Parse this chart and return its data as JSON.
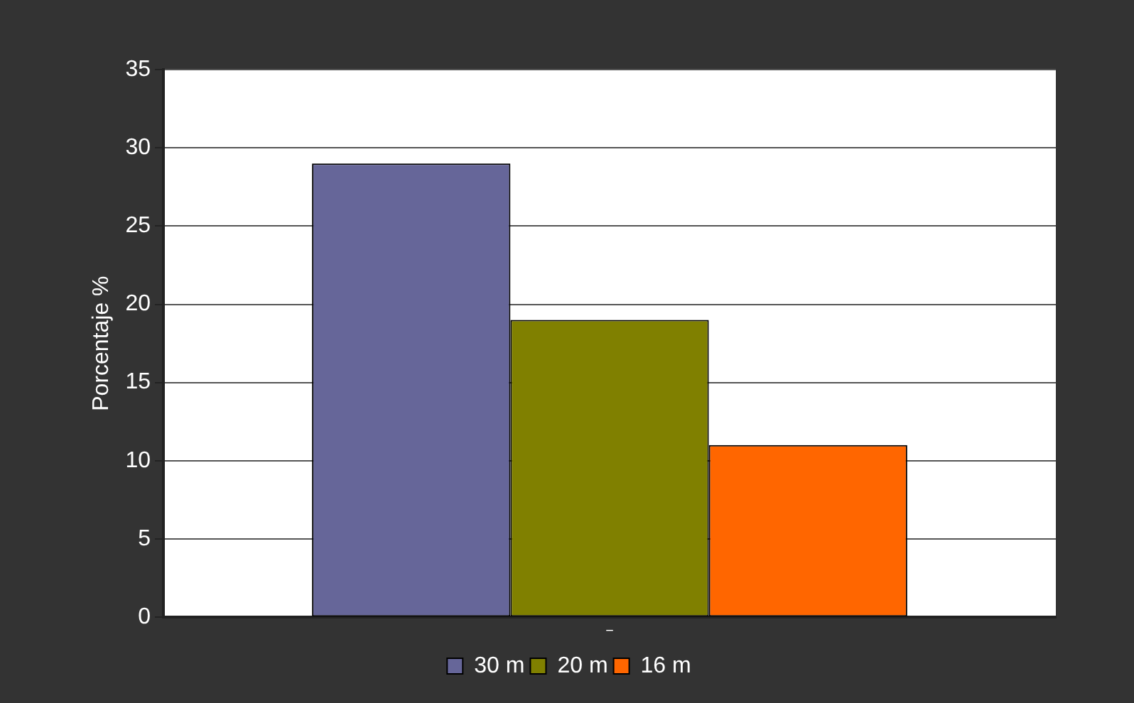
{
  "chart_data": {
    "type": "bar",
    "ylabel": "Porcentaje %",
    "categories": [
      "‾"
    ],
    "series": [
      {
        "name": "30 m",
        "color": "#666699",
        "values": [
          29
        ]
      },
      {
        "name": "20 m",
        "color": "#808000",
        "values": [
          19
        ]
      },
      {
        "name": "16 m",
        "color": "#ff6600",
        "values": [
          11
        ]
      }
    ],
    "ylim": [
      0,
      35
    ],
    "yticks": [
      0,
      5,
      10,
      15,
      20,
      25,
      30,
      35
    ],
    "grid": "y",
    "legend": "bottom"
  }
}
